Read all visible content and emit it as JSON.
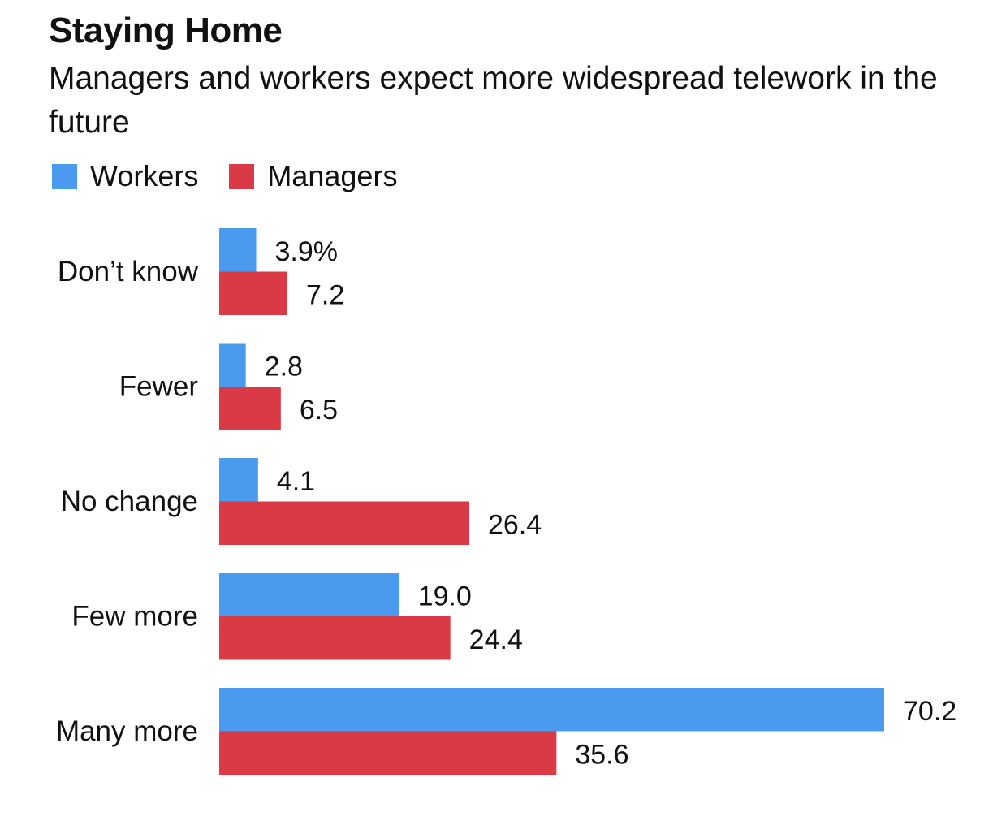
{
  "chart_data": {
    "type": "bar",
    "orientation": "horizontal",
    "title": "Staying Home",
    "subtitle": "Managers and workers expect more widespread telework in the future",
    "categories": [
      "Don’t know",
      "Fewer",
      "No change",
      "Few more",
      "Many more"
    ],
    "series": [
      {
        "name": "Workers",
        "color": "#4a9af0",
        "values": [
          3.9,
          2.8,
          4.1,
          19.0,
          70.2
        ],
        "labels": [
          "3.9%",
          "2.8",
          "4.1",
          "19.0",
          "70.2"
        ]
      },
      {
        "name": "Managers",
        "color": "#d93a45",
        "values": [
          7.2,
          6.5,
          26.4,
          24.4,
          35.6
        ],
        "labels": [
          "7.2",
          "6.5",
          "26.4",
          "24.4",
          "35.6"
        ]
      }
    ],
    "xlim": [
      0,
      70.2
    ],
    "grid": false,
    "legend": "top-left"
  }
}
